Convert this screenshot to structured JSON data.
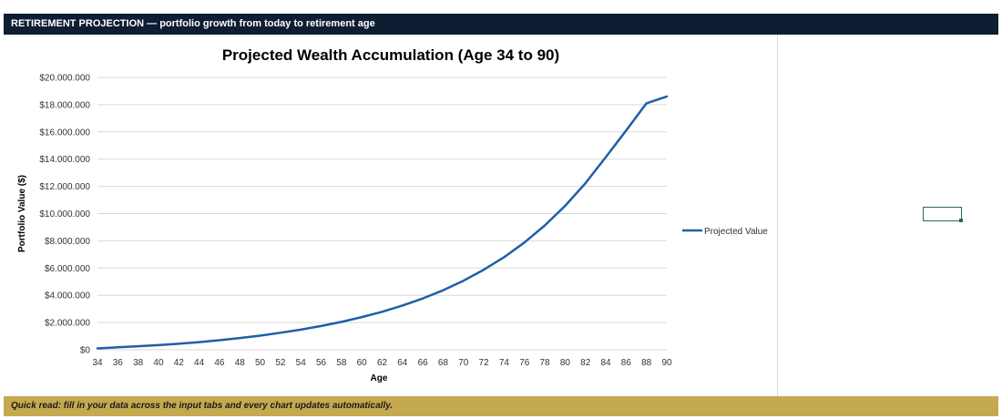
{
  "header": {
    "title": "RETIREMENT PROJECTION",
    "separator": "—",
    "subtitle": "portfolio growth from today to retirement age"
  },
  "footer": {
    "text": "Quick read: fill in your data across the input tabs and every chart updates automatically."
  },
  "colors": {
    "header_bg": "#0f1d33",
    "footer_bg": "#c5a94f",
    "series_line": "#1f5fa8",
    "gridline": "#d9d9d9",
    "cell_selection": "#217346"
  },
  "chart_data": {
    "type": "line",
    "title": "Projected Wealth Accumulation (Age 34 to 90)",
    "xlabel": "Age",
    "ylabel": "Portfolio Value ($)",
    "ylim": [
      0,
      20000000
    ],
    "y_ticks": [
      0,
      2000000,
      4000000,
      6000000,
      8000000,
      10000000,
      12000000,
      14000000,
      16000000,
      18000000,
      20000000
    ],
    "y_tick_labels": [
      "$0",
      "$2.000.000",
      "$4.000.000",
      "$6.000.000",
      "$8.000.000",
      "$10.000.000",
      "$12.000.000",
      "$14.000.000",
      "$16.000.000",
      "$18.000.000",
      "$20.000.000"
    ],
    "x_ticks": [
      34,
      36,
      38,
      40,
      42,
      44,
      46,
      48,
      50,
      52,
      54,
      56,
      58,
      60,
      62,
      64,
      66,
      68,
      70,
      72,
      74,
      76,
      78,
      80,
      82,
      84,
      86,
      88,
      90
    ],
    "grid": true,
    "legend_position": "right",
    "series": [
      {
        "name": "Projected Value",
        "x": [
          34,
          36,
          38,
          40,
          42,
          44,
          46,
          48,
          50,
          52,
          54,
          56,
          58,
          60,
          62,
          64,
          66,
          68,
          70,
          72,
          74,
          76,
          78,
          80,
          82,
          84,
          86,
          88,
          90
        ],
        "values": [
          100000,
          180000,
          260000,
          340000,
          440000,
          560000,
          700000,
          860000,
          1040000,
          1250000,
          1480000,
          1750000,
          2050000,
          2400000,
          2790000,
          3250000,
          3770000,
          4370000,
          5070000,
          5880000,
          6800000,
          7880000,
          9130000,
          10570000,
          12230000,
          14150000,
          16100000,
          18100000,
          18600000
        ]
      }
    ]
  }
}
